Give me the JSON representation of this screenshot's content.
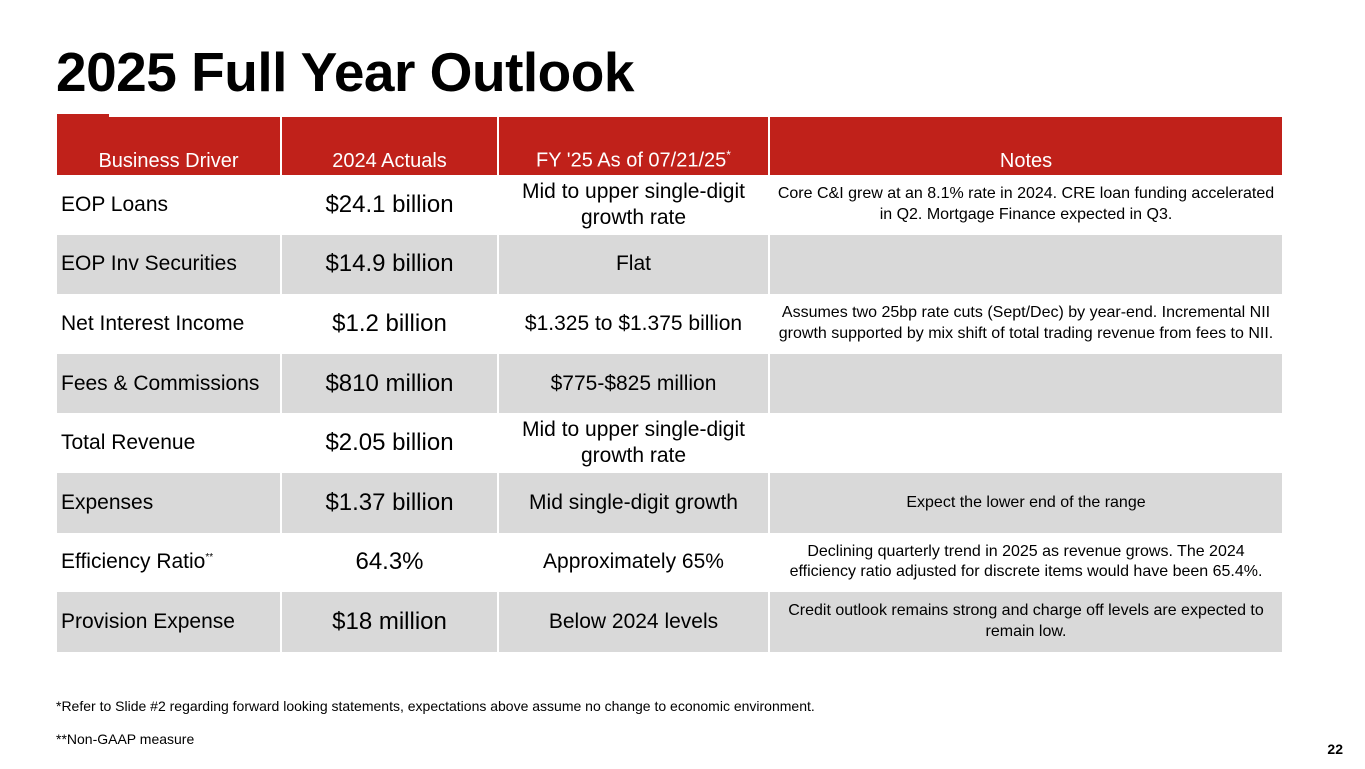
{
  "slide": {
    "title": "2025 Full Year Outlook",
    "page_number": "22",
    "accent_color": "#c0211a",
    "shade_color": "#d9d9d9"
  },
  "table": {
    "headers": {
      "driver": "Business Driver",
      "actuals": "2024 Actuals",
      "fy": "FY '25 As of 07/21/25",
      "fy_marker": "*",
      "notes": "Notes"
    },
    "rows": [
      {
        "driver": "EOP Loans",
        "driver_marker": "",
        "actual": "$24.1 billion",
        "fy": "Mid to upper single-digit growth rate",
        "note": "Core C&I grew at an 8.1% rate in 2024. CRE loan funding accelerated in Q2. Mortgage Finance expected in Q3."
      },
      {
        "driver": "EOP Inv Securities",
        "driver_marker": "",
        "actual": "$14.9 billion",
        "fy": "Flat",
        "note": ""
      },
      {
        "driver": "Net Interest Income",
        "driver_marker": "",
        "actual": "$1.2 billion",
        "fy": "$1.325 to $1.375 billion",
        "note": "Assumes two 25bp rate cuts (Sept/Dec) by year-end. Incremental NII growth supported by mix shift of total trading revenue from fees to NII."
      },
      {
        "driver": "Fees & Commissions",
        "driver_marker": "",
        "actual": "$810 million",
        "fy": "$775-$825 million",
        "note": ""
      },
      {
        "driver": "Total Revenue",
        "driver_marker": "",
        "actual": "$2.05 billion",
        "fy": "Mid to upper single-digit growth rate",
        "note": ""
      },
      {
        "driver": "Expenses",
        "driver_marker": "",
        "actual": "$1.37 billion",
        "fy": "Mid single-digit growth",
        "note": "Expect the lower end of the range"
      },
      {
        "driver": "Efficiency Ratio",
        "driver_marker": "**",
        "actual": "64.3%",
        "fy": "Approximately 65%",
        "note": "Declining quarterly trend in 2025 as revenue grows. The 2024 efficiency ratio adjusted for discrete items would have been 65.4%."
      },
      {
        "driver": "Provision Expense",
        "driver_marker": "",
        "actual": "$18 million",
        "fy": "Below 2024 levels",
        "note": "Credit outlook remains strong and charge off levels are expected to remain low."
      }
    ]
  },
  "footnotes": {
    "forward_looking": "*Refer to Slide #2 regarding forward looking statements, expectations above assume no change to economic environment.",
    "non_gaap": "**Non-GAAP measure"
  }
}
